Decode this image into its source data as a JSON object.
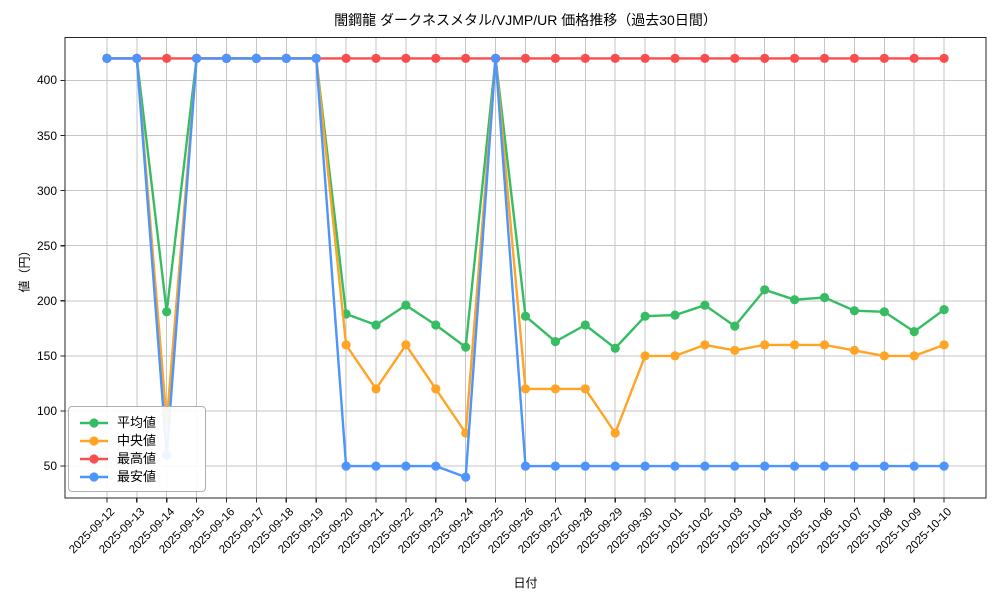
{
  "chart_data": {
    "type": "line",
    "title": "闇鋼龍 ダークネスメタル/VJMP/UR 価格推移（過去30日間）",
    "xlabel": "日付",
    "ylabel": "値（円）",
    "categories": [
      "2025-09-12",
      "2025-09-13",
      "2025-09-14",
      "2025-09-15",
      "2025-09-16",
      "2025-09-17",
      "2025-09-18",
      "2025-09-19",
      "2025-09-20",
      "2025-09-21",
      "2025-09-22",
      "2025-09-23",
      "2025-09-24",
      "2025-09-25",
      "2025-09-26",
      "2025-09-27",
      "2025-09-28",
      "2025-09-29",
      "2025-09-30",
      "2025-10-01",
      "2025-10-02",
      "2025-10-03",
      "2025-10-04",
      "2025-10-05",
      "2025-10-06",
      "2025-10-07",
      "2025-10-08",
      "2025-10-09",
      "2025-10-10"
    ],
    "series": [
      {
        "id": "avg",
        "name": "平均値",
        "color": "#36bd63",
        "values": [
          420,
          420,
          190,
          420,
          420,
          420,
          420,
          420,
          188,
          178,
          196,
          178,
          158,
          420,
          186,
          163,
          178,
          157,
          186,
          187,
          196,
          177,
          210,
          201,
          203,
          191,
          190,
          172,
          192
        ]
      },
      {
        "id": "median",
        "name": "中央値",
        "color": "#ffa424",
        "values": [
          420,
          420,
          90,
          420,
          420,
          420,
          420,
          420,
          160,
          120,
          160,
          120,
          80,
          420,
          120,
          120,
          120,
          80,
          150,
          150,
          160,
          155,
          160,
          160,
          160,
          155,
          150,
          150,
          160
        ]
      },
      {
        "id": "max",
        "name": "最高値",
        "color": "#fa4d4d",
        "values": [
          420,
          420,
          420,
          420,
          420,
          420,
          420,
          420,
          420,
          420,
          420,
          420,
          420,
          420,
          420,
          420,
          420,
          420,
          420,
          420,
          420,
          420,
          420,
          420,
          420,
          420,
          420,
          420,
          420
        ]
      },
      {
        "id": "min",
        "name": "最安値",
        "color": "#4d94ff",
        "values": [
          420,
          420,
          60,
          420,
          420,
          420,
          420,
          420,
          50,
          50,
          50,
          50,
          40,
          420,
          50,
          50,
          50,
          50,
          50,
          50,
          50,
          50,
          50,
          50,
          50,
          50,
          50,
          50,
          50
        ]
      }
    ],
    "yticks": [
      50,
      100,
      150,
      200,
      250,
      300,
      350,
      400
    ],
    "ylim": [
      21,
      439
    ],
    "grid": true,
    "grid_color": "#c6c6c6",
    "axis_color": "#262626",
    "legend_position": "lower left"
  }
}
